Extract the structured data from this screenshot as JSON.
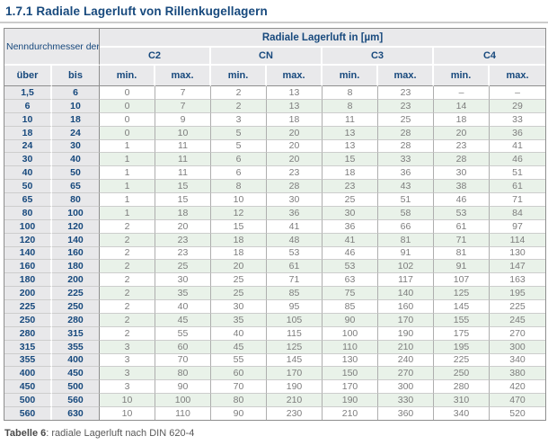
{
  "page": {
    "title": "1.7.1 Radiale Lagerluft von Rillenkugellagern",
    "caption_bold": "Tabelle 6",
    "caption_rest": ": radiale Lagerluft nach DIN 620-4"
  },
  "colors": {
    "accent_blue": "#17497d",
    "header_gray": "#e9e9eb",
    "stripe_green": "#e9f2e9",
    "data_text_gray": "#7d7d7d",
    "rule_gray": "#cccccc"
  },
  "table": {
    "row_group_header": "Nenndurchmesser der Bohrung d [mm]",
    "col_group_header": "Radiale Lagerluft in [µm]",
    "groups": [
      "C2",
      "CN",
      "C3",
      "C4"
    ],
    "sub_headers": [
      "über",
      "bis",
      "min.",
      "max.",
      "min.",
      "max.",
      "min.",
      "max.",
      "min.",
      "max."
    ],
    "rows": [
      [
        "1,5",
        "6",
        "0",
        "7",
        "2",
        "13",
        "8",
        "23",
        "–",
        "–"
      ],
      [
        "6",
        "10",
        "0",
        "7",
        "2",
        "13",
        "8",
        "23",
        "14",
        "29"
      ],
      [
        "10",
        "18",
        "0",
        "9",
        "3",
        "18",
        "11",
        "25",
        "18",
        "33"
      ],
      [
        "18",
        "24",
        "0",
        "10",
        "5",
        "20",
        "13",
        "28",
        "20",
        "36"
      ],
      [
        "24",
        "30",
        "1",
        "11",
        "5",
        "20",
        "13",
        "28",
        "23",
        "41"
      ],
      [
        "30",
        "40",
        "1",
        "11",
        "6",
        "20",
        "15",
        "33",
        "28",
        "46"
      ],
      [
        "40",
        "50",
        "1",
        "11",
        "6",
        "23",
        "18",
        "36",
        "30",
        "51"
      ],
      [
        "50",
        "65",
        "1",
        "15",
        "8",
        "28",
        "23",
        "43",
        "38",
        "61"
      ],
      [
        "65",
        "80",
        "1",
        "15",
        "10",
        "30",
        "25",
        "51",
        "46",
        "71"
      ],
      [
        "80",
        "100",
        "1",
        "18",
        "12",
        "36",
        "30",
        "58",
        "53",
        "84"
      ],
      [
        "100",
        "120",
        "2",
        "20",
        "15",
        "41",
        "36",
        "66",
        "61",
        "97"
      ],
      [
        "120",
        "140",
        "2",
        "23",
        "18",
        "48",
        "41",
        "81",
        "71",
        "114"
      ],
      [
        "140",
        "160",
        "2",
        "23",
        "18",
        "53",
        "46",
        "91",
        "81",
        "130"
      ],
      [
        "160",
        "180",
        "2",
        "25",
        "20",
        "61",
        "53",
        "102",
        "91",
        "147"
      ],
      [
        "180",
        "200",
        "2",
        "30",
        "25",
        "71",
        "63",
        "117",
        "107",
        "163"
      ],
      [
        "200",
        "225",
        "2",
        "35",
        "25",
        "85",
        "75",
        "140",
        "125",
        "195"
      ],
      [
        "225",
        "250",
        "2",
        "40",
        "30",
        "95",
        "85",
        "160",
        "145",
        "225"
      ],
      [
        "250",
        "280",
        "2",
        "45",
        "35",
        "105",
        "90",
        "170",
        "155",
        "245"
      ],
      [
        "280",
        "315",
        "2",
        "55",
        "40",
        "115",
        "100",
        "190",
        "175",
        "270"
      ],
      [
        "315",
        "355",
        "3",
        "60",
        "45",
        "125",
        "110",
        "210",
        "195",
        "300"
      ],
      [
        "355",
        "400",
        "3",
        "70",
        "55",
        "145",
        "130",
        "240",
        "225",
        "340"
      ],
      [
        "400",
        "450",
        "3",
        "80",
        "60",
        "170",
        "150",
        "270",
        "250",
        "380"
      ],
      [
        "450",
        "500",
        "3",
        "90",
        "70",
        "190",
        "170",
        "300",
        "280",
        "420"
      ],
      [
        "500",
        "560",
        "10",
        "100",
        "80",
        "210",
        "190",
        "330",
        "310",
        "470"
      ],
      [
        "560",
        "630",
        "10",
        "110",
        "90",
        "230",
        "210",
        "360",
        "340",
        "520"
      ]
    ]
  }
}
